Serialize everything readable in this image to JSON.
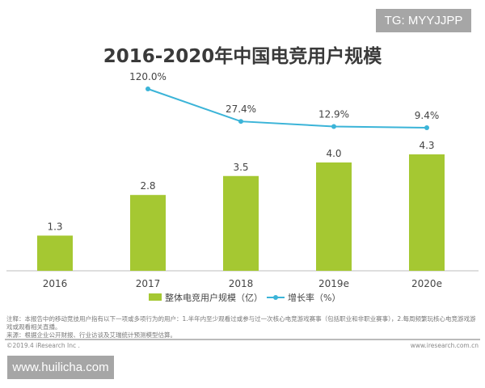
{
  "watermark_top": "TG: MYYJJPP",
  "watermark_bottom": "www.huilicha.com",
  "notes": {
    "note": "注释：本报告中的移动竞技用户指有以下一项或多项行为的用户：1.半年内至少观看过或参与过一次核心电竞游戏赛事（包括职业和非职业赛事），2.每周频繁玩核心电竞游戏游戏或观看相关直播。",
    "source": "来源：根据企业公开财报、行业访谈及艾瑞统计预测模型估算。",
    "copyright": "©2019.4 iResearch Inc .",
    "site": "www.iresearch.com.cn"
  },
  "chart_data": {
    "type": "bar",
    "title": "2016-2020年中国电竞用户规模",
    "categories": [
      "2016",
      "2017",
      "2018",
      "2019e",
      "2020e"
    ],
    "series": [
      {
        "name": "整体电竞用户规模（亿）",
        "type": "bar",
        "values": [
          1.3,
          2.8,
          3.5,
          4.0,
          4.3
        ],
        "labels": [
          "1.3",
          "2.8",
          "3.5",
          "4.0",
          "4.3"
        ],
        "color": "#a5c832"
      },
      {
        "name": "增长率（%）",
        "type": "line",
        "values": [
          null,
          120.0,
          27.4,
          12.9,
          9.4
        ],
        "labels": [
          "",
          "120.0%",
          "27.4%",
          "12.9%",
          "9.4%"
        ],
        "color": "#3bb4d8"
      }
    ],
    "legend": "bottom",
    "grid": false
  }
}
